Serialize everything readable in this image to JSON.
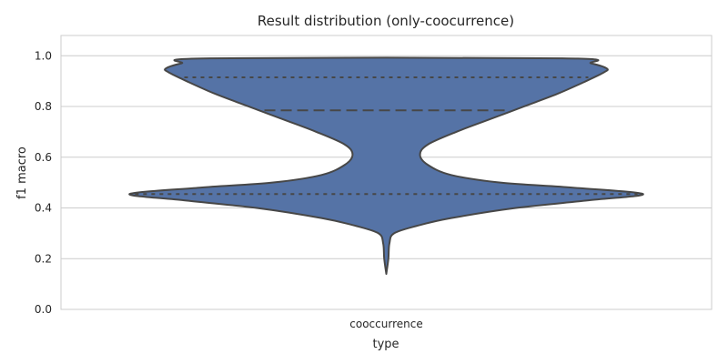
{
  "chart_data": {
    "type": "violin",
    "title": "Result distribution (only-coocurrence)",
    "xlabel": "type",
    "ylabel": "f1 macro",
    "categories": [
      "cooccurrence"
    ],
    "ylim": [
      0.0,
      1.08
    ],
    "yticks": [
      0.0,
      0.2,
      0.4,
      0.6,
      0.8,
      1.0
    ],
    "grid": true,
    "colors": {
      "fill": "#5573a6",
      "stroke": "#474747",
      "grid": "#cccccc",
      "frame": "#cccccc"
    },
    "series": [
      {
        "category": "cooccurrence",
        "min": 0.14,
        "max": 0.99,
        "quartiles": {
          "q1": 0.455,
          "median": 0.785,
          "q3": 0.915
        },
        "density": [
          [
            0.14,
            0.0
          ],
          [
            0.2,
            0.008
          ],
          [
            0.26,
            0.012
          ],
          [
            0.3,
            0.03
          ],
          [
            0.33,
            0.12
          ],
          [
            0.36,
            0.25
          ],
          [
            0.4,
            0.5
          ],
          [
            0.43,
            0.78
          ],
          [
            0.455,
            0.99
          ],
          [
            0.48,
            0.72
          ],
          [
            0.5,
            0.44
          ],
          [
            0.53,
            0.25
          ],
          [
            0.57,
            0.16
          ],
          [
            0.61,
            0.13
          ],
          [
            0.65,
            0.16
          ],
          [
            0.7,
            0.27
          ],
          [
            0.75,
            0.4
          ],
          [
            0.8,
            0.53
          ],
          [
            0.85,
            0.66
          ],
          [
            0.9,
            0.77
          ],
          [
            0.935,
            0.84
          ],
          [
            0.95,
            0.85
          ],
          [
            0.97,
            0.79
          ],
          [
            0.99,
            0.68
          ]
        ]
      }
    ]
  }
}
